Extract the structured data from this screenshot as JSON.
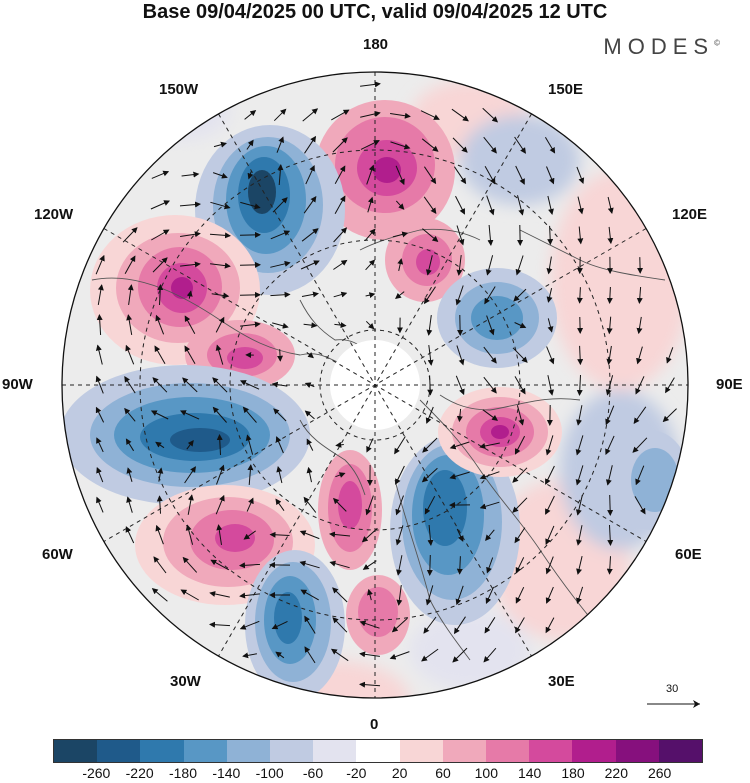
{
  "title": "Base 09/04/2025 00 UTC, valid 09/04/2025 12 UTC",
  "brand": "MODES",
  "brand_mark": "©",
  "lon_labels": {
    "l180": "180",
    "l150w": "150W",
    "l150e": "150E",
    "l120w": "120W",
    "l120e": "120E",
    "l90w": "90W",
    "l90e": "90E",
    "l60w": "60W",
    "l60e": "60E",
    "l30w": "30W",
    "l30e": "30E",
    "l0": "0"
  },
  "reference_vector": "30",
  "colorbar": {
    "colors": [
      "#1b4565",
      "#1f5a8a",
      "#2f79ad",
      "#5897c5",
      "#8fb2d6",
      "#c0cbe2",
      "#e3e3ef",
      "#ffffff",
      "#f8d6d6",
      "#f0a9bb",
      "#e67aa8",
      "#d44a9d",
      "#b11e8d",
      "#86107d",
      "#55106a"
    ],
    "ticks": [
      "-260",
      "-220",
      "-180",
      "-140",
      "-100",
      "-60",
      "-20",
      "20",
      "60",
      "100",
      "140",
      "180",
      "220",
      "260"
    ]
  },
  "anomaly_centers": [
    {
      "name": "positive-150w-180",
      "sign": "+",
      "level": "strong"
    },
    {
      "name": "positive-170e",
      "sign": "+",
      "level": "moderate"
    },
    {
      "name": "negative-150w",
      "sign": "-",
      "level": "strong"
    },
    {
      "name": "positive-120w",
      "sign": "+",
      "level": "strong"
    },
    {
      "name": "positive-100w",
      "sign": "+",
      "level": "moderate"
    },
    {
      "name": "negative-90w",
      "sign": "-",
      "level": "strong"
    },
    {
      "name": "positive-60w",
      "sign": "+",
      "level": "moderate"
    },
    {
      "name": "negative-30w",
      "sign": "-",
      "level": "strong"
    },
    {
      "name": "positive-0",
      "sign": "+",
      "level": "moderate"
    },
    {
      "name": "positive-10w",
      "sign": "+",
      "level": "moderate"
    },
    {
      "name": "negative-30e",
      "sign": "-",
      "level": "strong"
    },
    {
      "name": "positive-90e",
      "sign": "+",
      "level": "strong"
    },
    {
      "name": "negative-130e",
      "sign": "-",
      "level": "moderate"
    },
    {
      "name": "negative-160e",
      "sign": "-",
      "level": "weak"
    },
    {
      "name": "negative-70e",
      "sign": "-",
      "level": "weak"
    }
  ]
}
